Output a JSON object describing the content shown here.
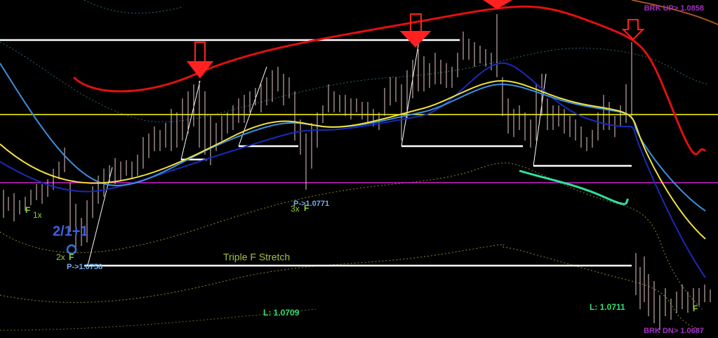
{
  "annotations": {
    "break_up": "BRK UP> 1.0858",
    "break_down": "BRK DN> 1.0687",
    "low_left": "L: 1.0709",
    "low_right": "L: 1.0711",
    "stretch": "Triple F Stretch",
    "count": "2/1+1",
    "pivot_left": "P->1.0758",
    "pivot_mid": "P->1.0771",
    "one_x": "1x",
    "two_x": "2x",
    "three_x": "3x",
    "f": "F"
  }
}
